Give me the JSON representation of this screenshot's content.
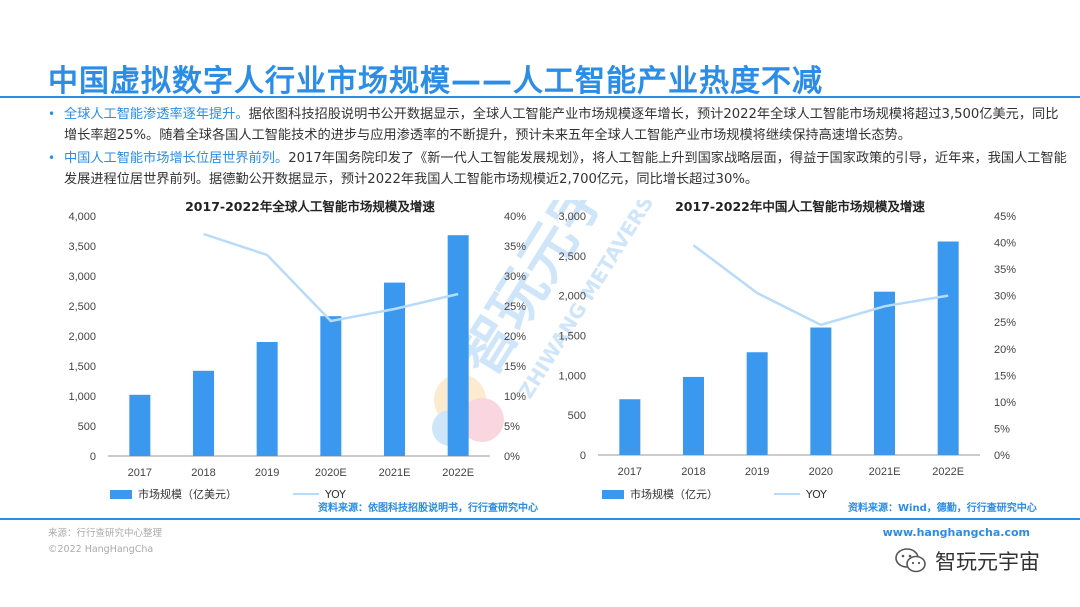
{
  "title": "中国虚拟数字人行业市场规模——人工智能产业热度不减",
  "bullets": [
    {
      "highlight": "全球人工智能渗透率逐年提升。",
      "text": "据依图科技招股说明书公开数据显示，全球人工智能产业市场规模逐年增长，预计2022年全球人工智能市场规模将超过3,500亿美元，同比增长率超25%。随着全球各国人工智能技术的进步与应用渗透率的不断提升，预计未来五年全球人工智能产业市场规模将继续保持高速增长态势。"
    },
    {
      "highlight": "中国人工智能市场增长位居世界前列。",
      "text": "2017年国务院印发了《新一代人工智能发展规划》，将人工智能上升到国家战略层面，得益于国家政策的引导，近年来，我国人工智能发展进程位居世界前列。据德勤公开数据显示，预计2022年我国人工智能市场规模近2,700亿元，同比增长超过30%。"
    }
  ],
  "chart_data": [
    {
      "type": "bar",
      "title": "2017-2022年全球人工智能市场规模及增速",
      "categories": [
        "2017",
        "2018",
        "2019",
        "2020E",
        "2021E",
        "2022E"
      ],
      "series": [
        {
          "name": "市场规模（亿美元）",
          "type": "bar",
          "axis": "left",
          "values": [
            1020,
            1420,
            1900,
            2330,
            2890,
            3680
          ]
        },
        {
          "name": "YOY",
          "type": "line",
          "axis": "right",
          "values": [
            null,
            37,
            33.5,
            22.5,
            24.5,
            27
          ]
        }
      ],
      "left_axis": {
        "min": 0,
        "max": 4000,
        "ticks": [
          "0",
          "500",
          "1,000",
          "1,500",
          "2,000",
          "2,500",
          "3,000",
          "3,500",
          "4,000"
        ]
      },
      "right_axis": {
        "min": 0,
        "max": 40,
        "ticks": [
          "0%",
          "5%",
          "10%",
          "15%",
          "20%",
          "25%",
          "30%",
          "35%",
          "40%"
        ]
      },
      "legend_position": "bottom",
      "grid": false,
      "source": "资料来源：依图科技招股说明书，行行查研究中心"
    },
    {
      "type": "bar",
      "title": "2017-2022年中国人工智能市场规模及增速",
      "categories": [
        "2017",
        "2018",
        "2019",
        "2020",
        "2021E",
        "2022E"
      ],
      "series": [
        {
          "name": "市场规模（亿元）",
          "type": "bar",
          "axis": "left",
          "values": [
            700,
            980,
            1290,
            1600,
            2050,
            2680
          ]
        },
        {
          "name": "YOY",
          "type": "line",
          "axis": "right",
          "values": [
            null,
            39.5,
            30.5,
            24.5,
            28,
            30
          ]
        }
      ],
      "left_axis": {
        "min": 0,
        "max": 3000,
        "ticks": [
          "0",
          "500",
          "1,000",
          "1,500",
          "2,000",
          "2,500",
          "3,000"
        ]
      },
      "right_axis": {
        "min": 0,
        "max": 45,
        "ticks": [
          "0%",
          "5%",
          "10%",
          "15%",
          "20%",
          "25%",
          "30%",
          "35%",
          "40%",
          "45%"
        ]
      },
      "legend_position": "bottom",
      "grid": false,
      "source": "资料来源：Wind，德勤，行行查研究中心"
    }
  ],
  "colors": {
    "accent": "#2b8de6",
    "bar": "#3a99ee",
    "line": "#b9dbfb"
  },
  "watermark": {
    "line1": "智玩元宇宙",
    "line2": "ZHIWANG METAVERSE"
  },
  "footer": {
    "source_note": "来源：行行查研究中心整理",
    "copyright": "©2022 HangHangCha",
    "url": "www.hanghangcha.com",
    "wechat_name": "智玩元宇宙"
  }
}
